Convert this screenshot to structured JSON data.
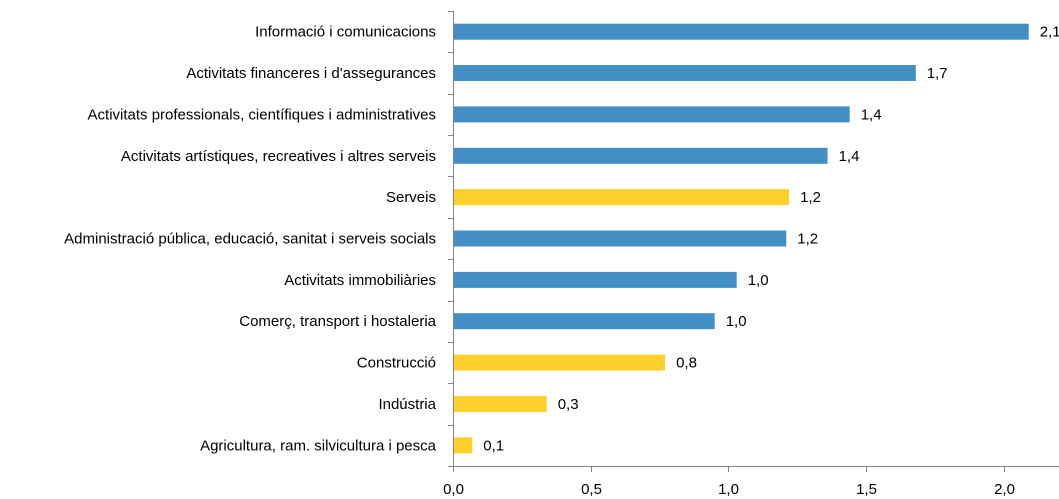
{
  "chart_data": {
    "type": "bar",
    "orientation": "horizontal",
    "categories": [
      "Informació i comunicacions",
      "Activitats financeres i d'assegurances",
      "Activitats professionals, científiques i administratives",
      "Activitats artístiques, recreatives i altres serveis",
      "Serveis",
      "Administració pública, educació, sanitat i serveis socials",
      "Activitats immobiliàries",
      "Comerç, transport i hostaleria",
      "Construcció",
      "Indústria",
      "Agricultura, ram. silvicultura i pesca"
    ],
    "values": [
      2.09,
      1.68,
      1.44,
      1.36,
      1.22,
      1.21,
      1.03,
      0.95,
      0.77,
      0.34,
      0.07
    ],
    "value_labels": [
      "2,1",
      "1,7",
      "1,4",
      "1,4",
      "1,2",
      "1,2",
      "1,0",
      "1,0",
      "0,8",
      "0,3",
      "0,1"
    ],
    "bar_groups": [
      "sector",
      "sector",
      "sector",
      "sector",
      "aggregate",
      "sector",
      "sector",
      "sector",
      "aggregate",
      "aggregate",
      "aggregate"
    ],
    "colors": {
      "sector": "#418FC5",
      "aggregate": "#FED12E",
      "axis": "#868686"
    },
    "xlim": [
      0,
      2.2
    ],
    "xticks": [
      0,
      0.5,
      1,
      1.5,
      2
    ],
    "xtick_labels": [
      "0,0",
      "0,5",
      "1,0",
      "1,5",
      "2,0"
    ],
    "title": "",
    "xlabel": "",
    "ylabel": "",
    "grid": false,
    "legend": "none"
  }
}
